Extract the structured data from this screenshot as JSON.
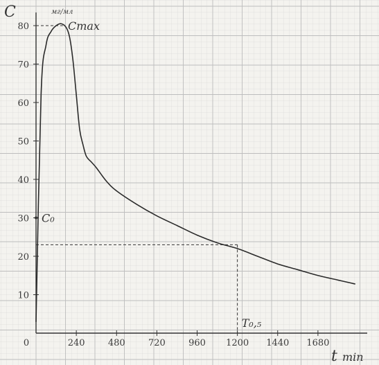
{
  "chart_data": {
    "type": "line",
    "ylabel": "C",
    "yunit": "мг/мл",
    "xlabel": "t",
    "xunit": "min",
    "xlim": [
      0,
      1920
    ],
    "ylim": [
      0,
      85
    ],
    "x_ticks": [
      0,
      240,
      480,
      720,
      960,
      1200,
      1440,
      1680
    ],
    "x_tick_labels": [
      "0",
      "240",
      "480",
      "720",
      "960",
      "1200",
      "1440",
      "1680"
    ],
    "y_ticks": [
      10,
      20,
      30,
      40,
      50,
      60,
      70,
      80
    ],
    "y_tick_labels": [
      "10",
      "20",
      "30",
      "40",
      "50",
      "60",
      "70",
      "80"
    ],
    "grid": true,
    "series": [
      {
        "x": [
          0,
          30,
          60,
          90,
          120,
          150,
          180,
          200,
          220,
          240,
          260,
          280,
          300,
          330,
          360,
          420,
          480,
          600,
          720,
          840,
          960,
          1080,
          1200,
          1320,
          1440,
          1560,
          1680,
          1800,
          1900
        ],
        "y": [
          3,
          62,
          75,
          78.5,
          80,
          80.5,
          79.5,
          77,
          71,
          62,
          53,
          49,
          46,
          44.5,
          43,
          39.5,
          37,
          33.5,
          30.5,
          28,
          25.5,
          23.5,
          22,
          20,
          18,
          16.5,
          15,
          13.8,
          12.8
        ]
      }
    ],
    "annotations": {
      "cmax_label": "Cmax",
      "cmax_value": 80,
      "c0_label": "C₀",
      "c0_value": 30,
      "half_life_label": "T₀,₅",
      "half_life_x": 1200,
      "half_life_y": 23
    }
  }
}
